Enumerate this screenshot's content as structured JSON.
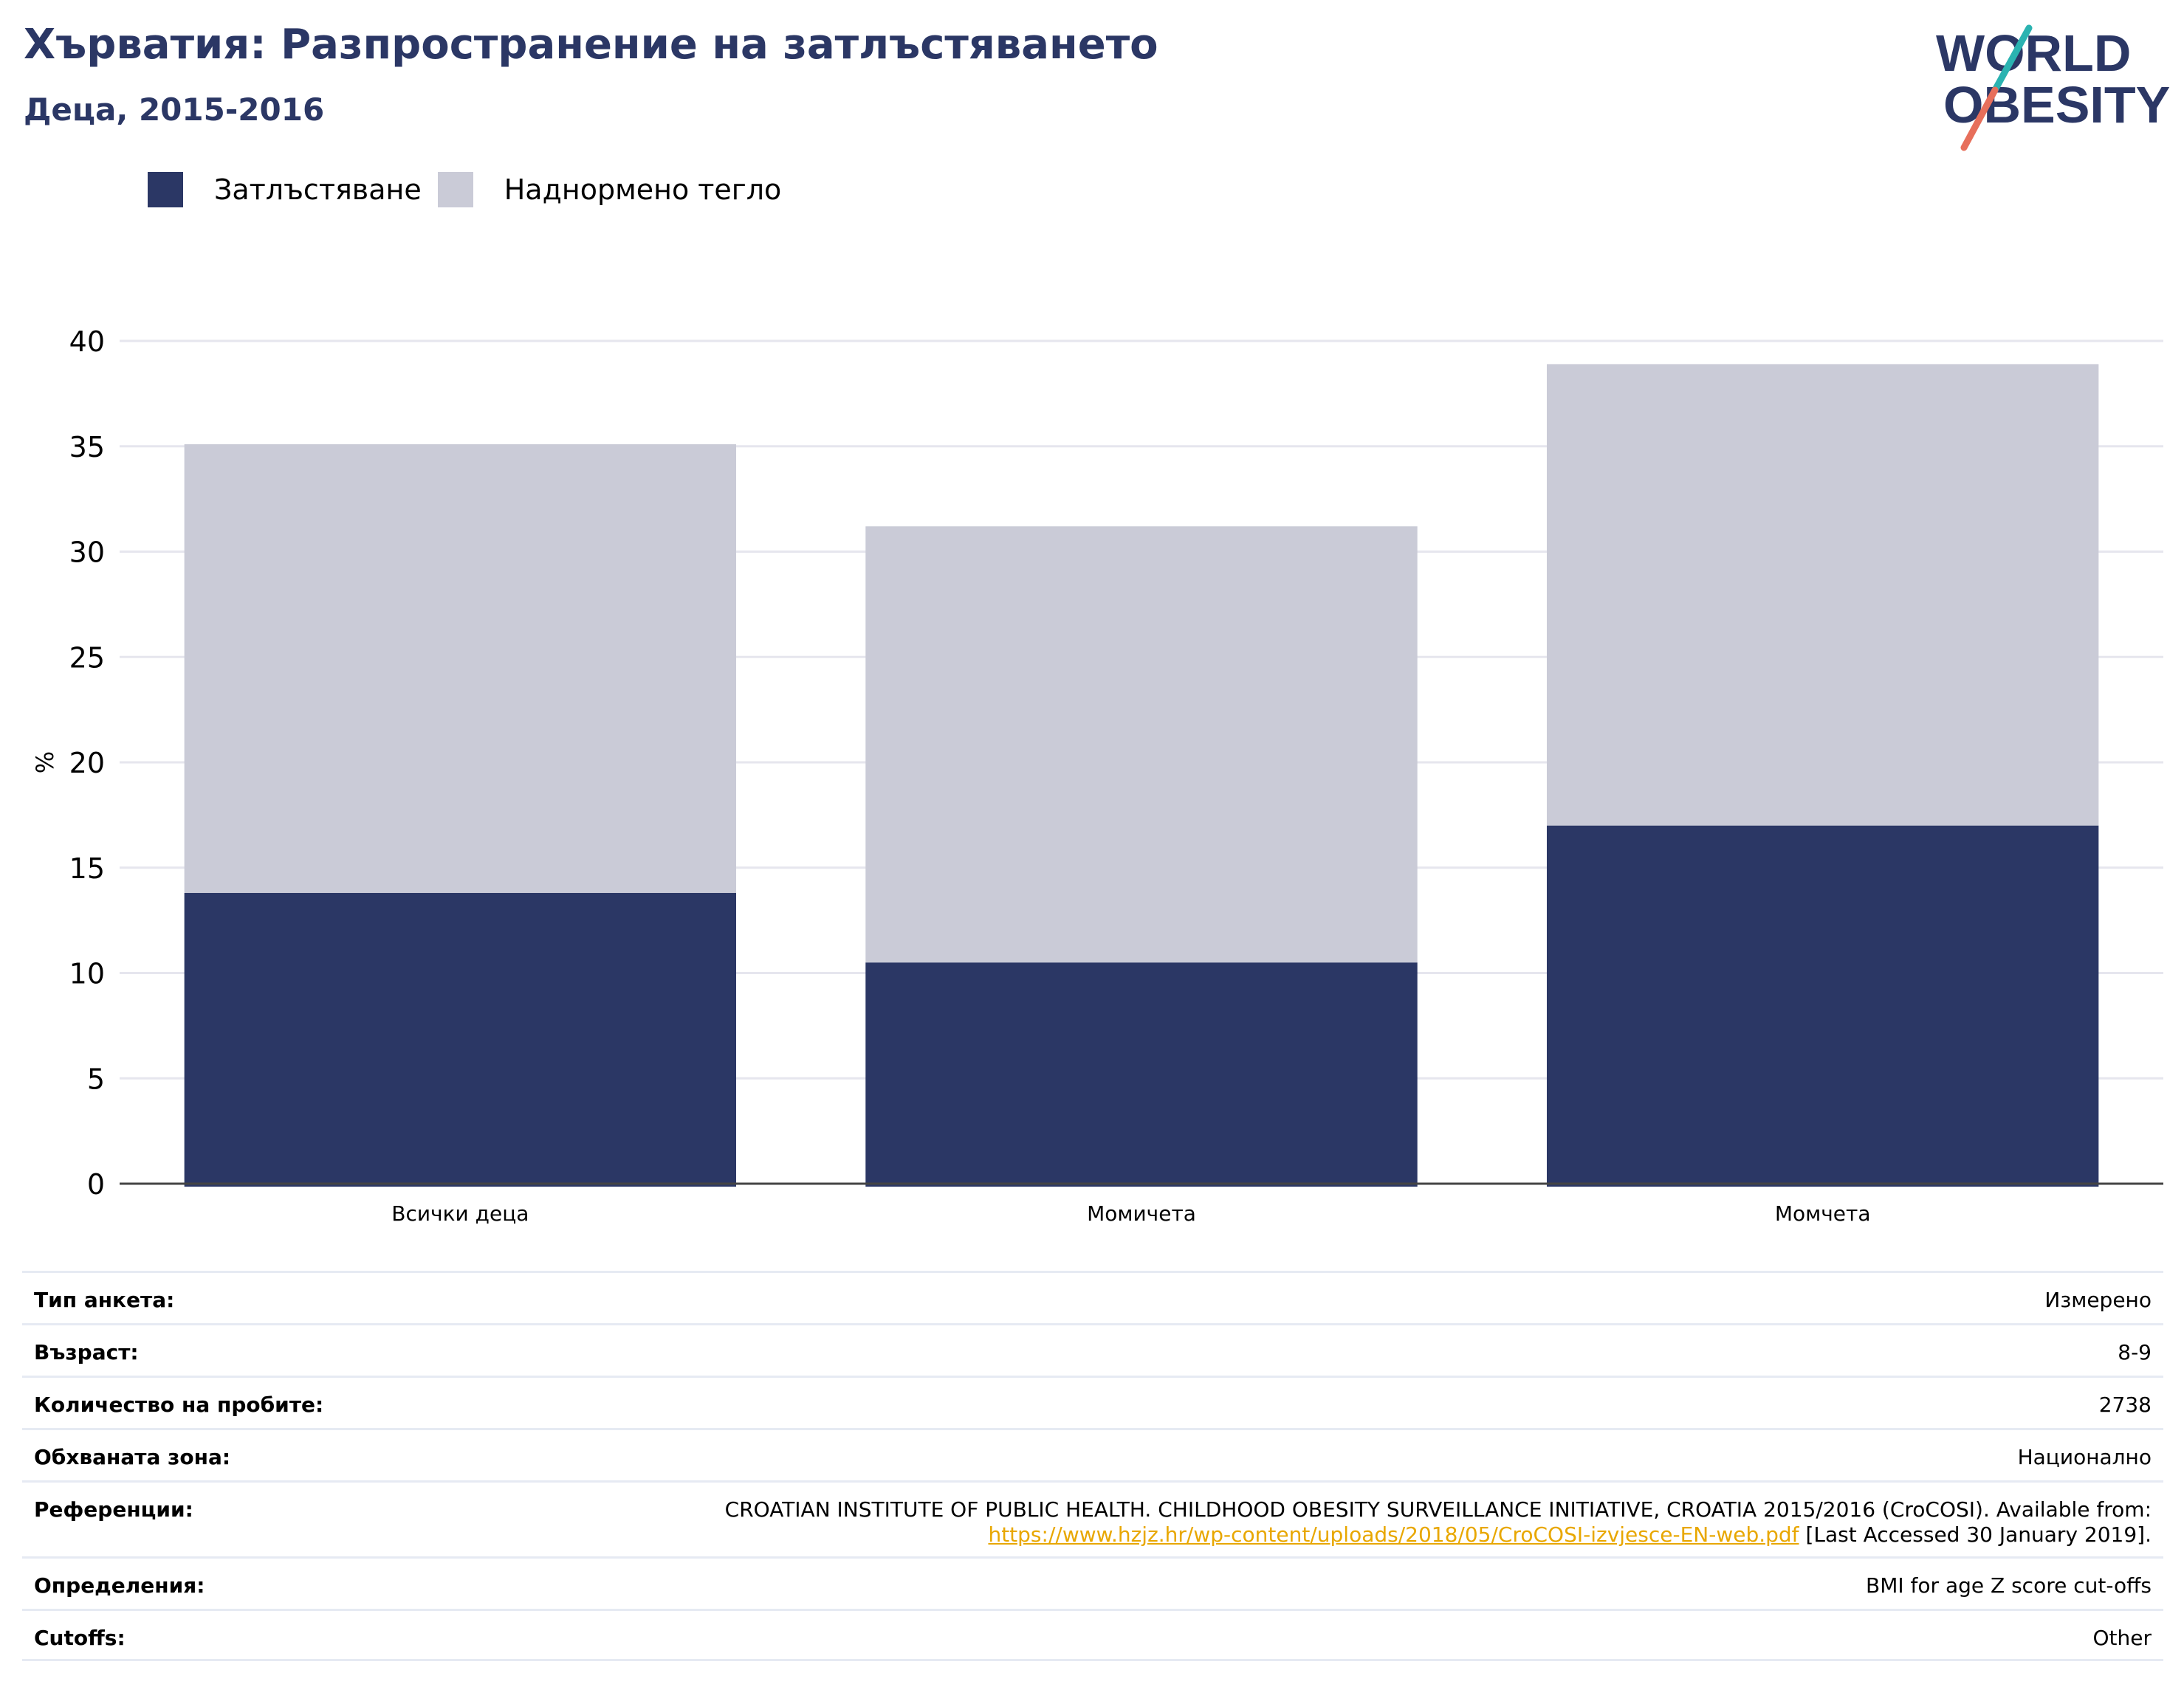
{
  "header": {
    "title": "Хърватия: Разпространение на затлъстяването",
    "subtitle": "Деца, 2015-2016"
  },
  "logo": {
    "line1": "WORLD",
    "line2": "OBESITY"
  },
  "legend": {
    "obesity": "Затлъстяване",
    "overweight": "Наднормено тегло"
  },
  "colors": {
    "obesity": "#2b3765",
    "overweight": "#cacbd7",
    "link": "#e8a700",
    "logo_teal": "#2bb3b1",
    "logo_coral": "#e76f5b"
  },
  "chart_data": {
    "type": "bar",
    "stacked": true,
    "categories": [
      "Всички деца",
      "Момичета",
      "Момчета"
    ],
    "series": [
      {
        "name": "Затлъстяване",
        "values": [
          13.8,
          10.5,
          17.0
        ]
      },
      {
        "name": "Наднормено тегло",
        "values": [
          21.3,
          20.7,
          21.9
        ]
      }
    ],
    "ylabel": "%",
    "ylim": [
      0,
      40
    ],
    "yticks": [
      0,
      5,
      10,
      15,
      20,
      25,
      30,
      35,
      40
    ],
    "grid": true
  },
  "meta": {
    "survey_type": {
      "label": "Тип анкета:",
      "value": "Измерено"
    },
    "age": {
      "label": "Възраст:",
      "value": "8-9"
    },
    "sample_size": {
      "label": "Количество на пробите:",
      "value": "2738"
    },
    "area": {
      "label": "Обхваната зона:",
      "value": "Национално"
    },
    "references": {
      "label": "Референции:",
      "text": "CROATIAN INSTITUTE OF PUBLIC HEALTH. CHILDHOOD OBESITY SURVEILLANCE INITIATIVE, CROATIA 2015/2016 (CroCOSI). Available from:",
      "link": "https://www.hzjz.hr/wp-content/uploads/2018/05/CroCOSI-izvjesce-EN-web.pdf",
      "suffix": "[Last Accessed 30 January 2019]."
    },
    "definitions": {
      "label": "Определения:",
      "value": "BMI for age Z score cut-offs"
    },
    "cutoffs": {
      "label": "Cutoffs:",
      "value": "Other"
    }
  }
}
